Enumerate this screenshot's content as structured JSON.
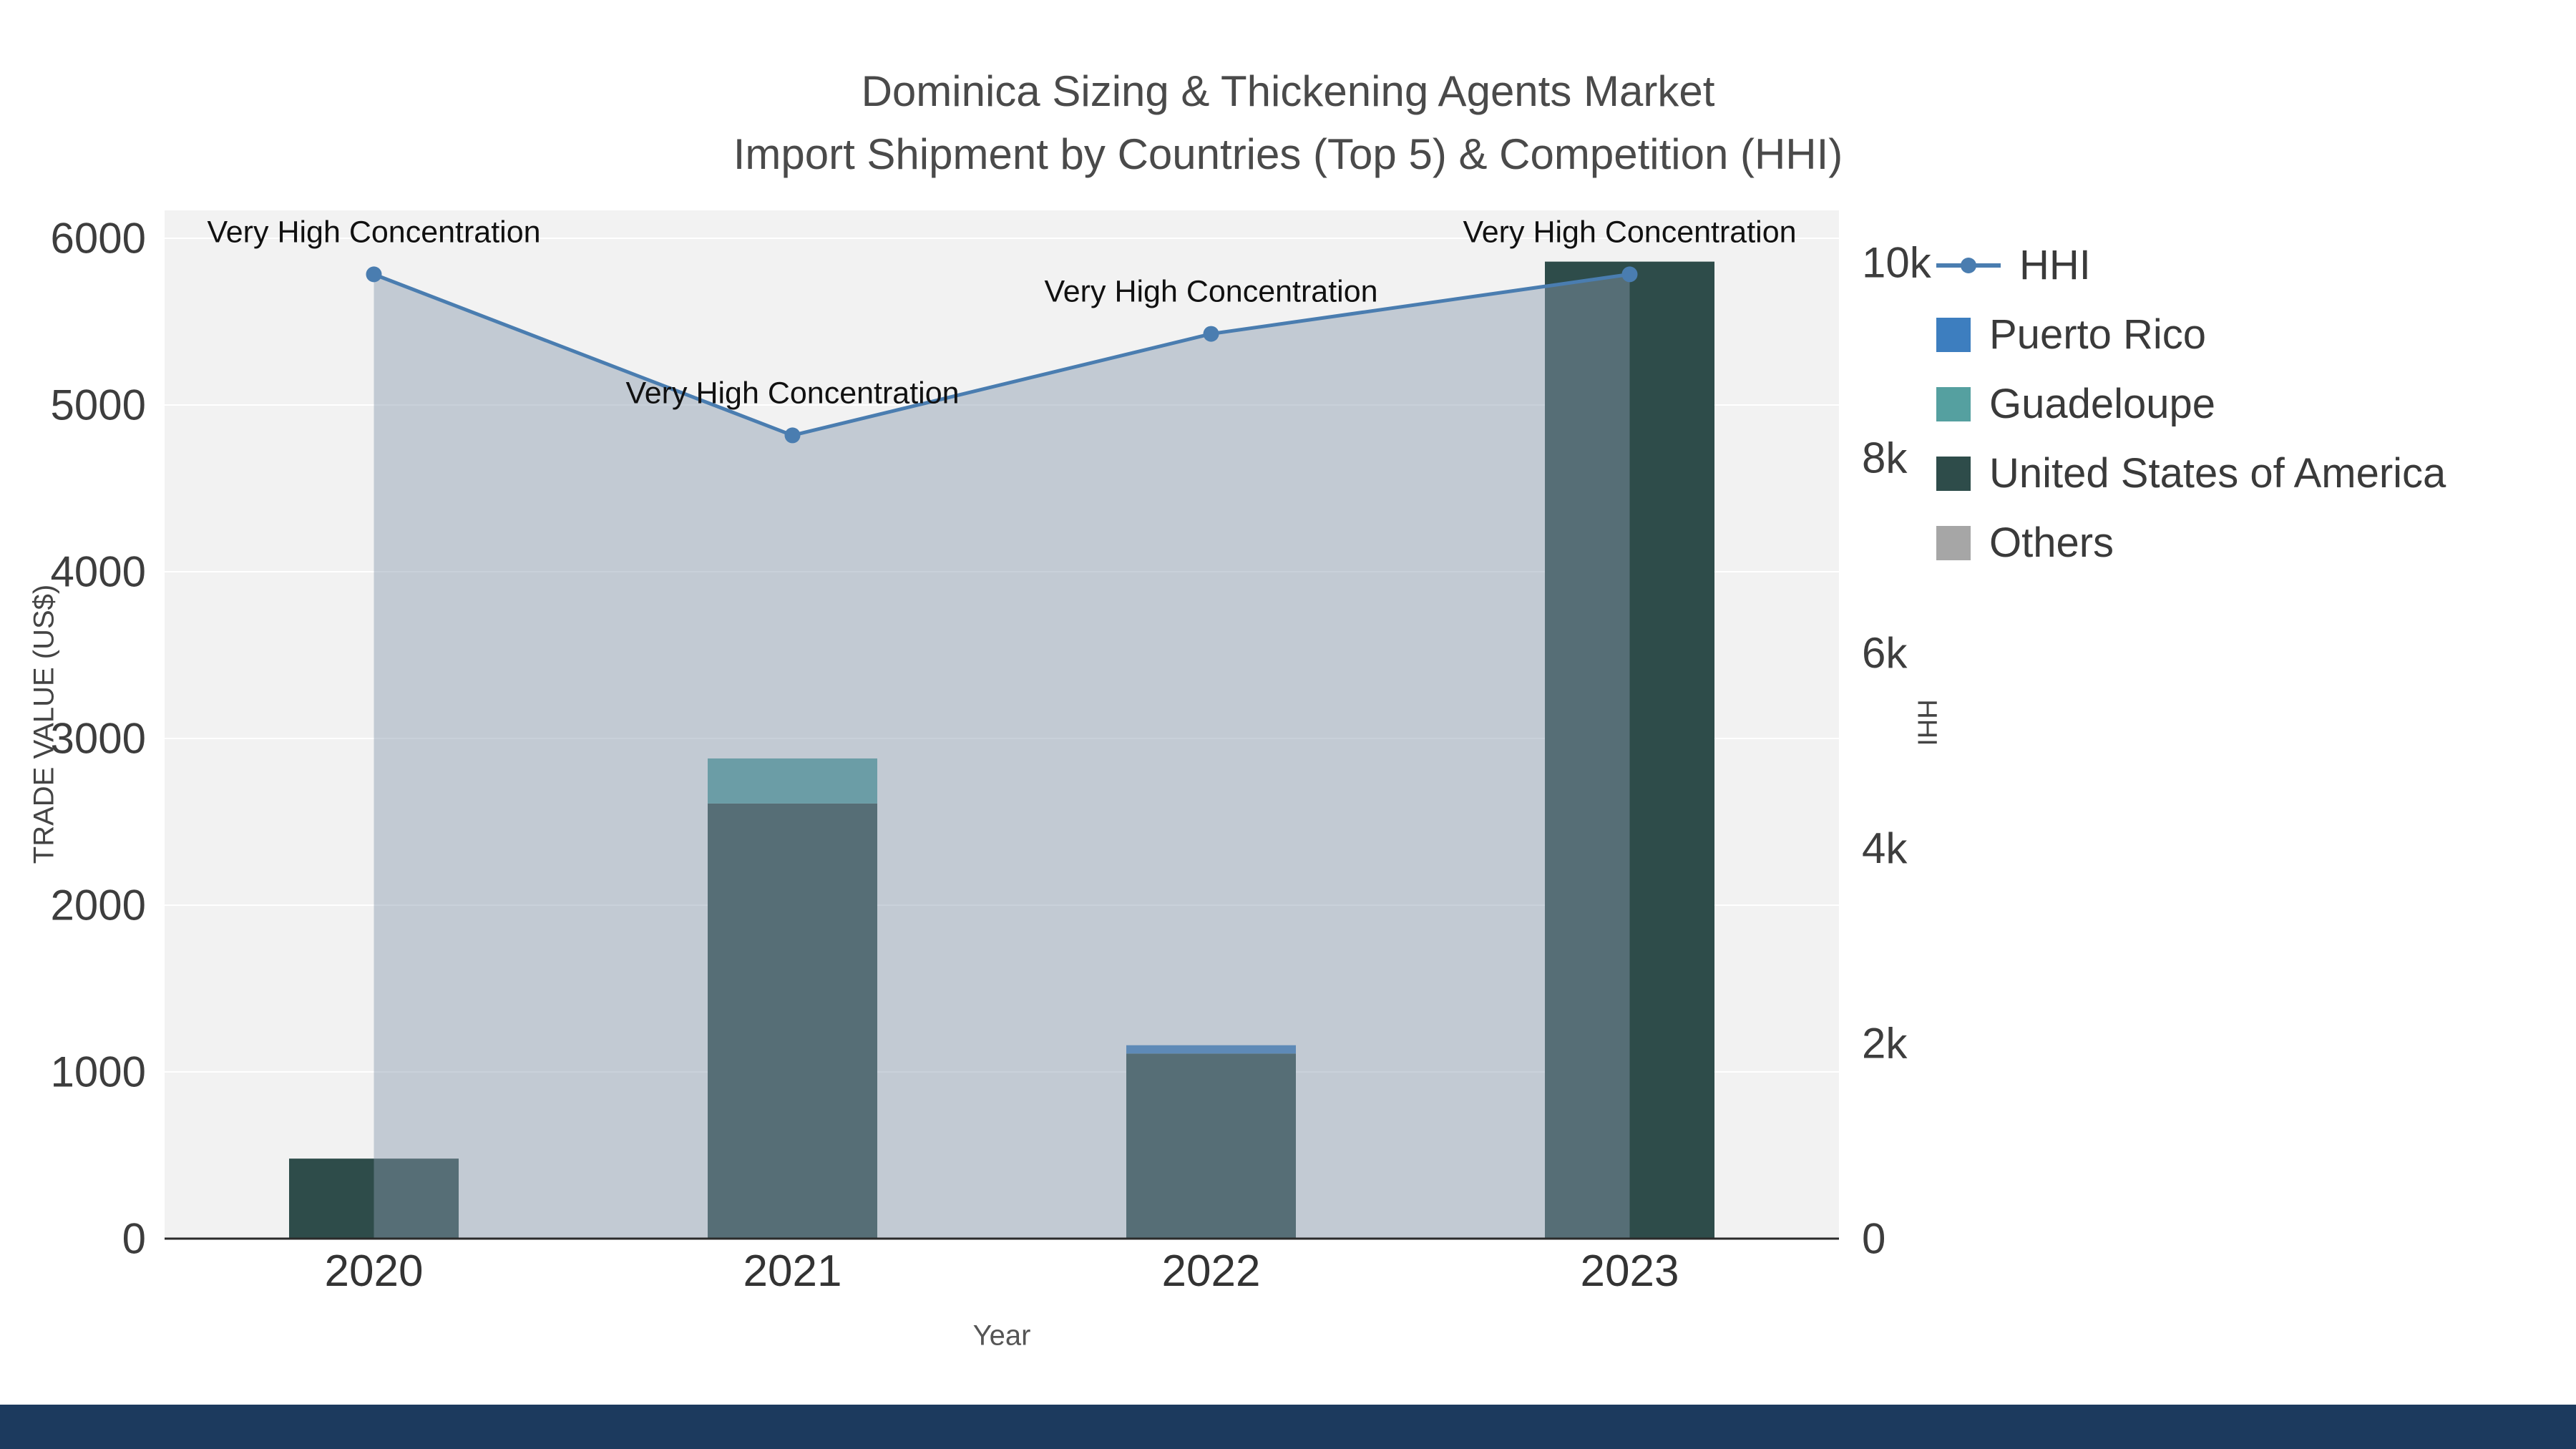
{
  "page": {
    "background": "#ffffff",
    "footer_bar_color": "#1c3a5e"
  },
  "title": {
    "line1": "Dominica Sizing & Thickening Agents Market",
    "line2": "Import Shipment by Countries (Top 5) & Competition (HHI)"
  },
  "chart_data": {
    "type": "bar+line",
    "title": "Dominica Sizing & Thickening Agents Market — Import Shipment by Countries (Top 5) & Competition (HHI)",
    "x": [
      "2020",
      "2021",
      "2022",
      "2023"
    ],
    "xlabel": "Year",
    "plot_bg": "#f2f2f2",
    "grid_color": "#ffffff",
    "axis_line_color": "#2a2a2a",
    "left_axis": {
      "label": "TRADE VALUE (US$)",
      "range": [
        0,
        6170
      ],
      "ticks": [
        {
          "value": 0,
          "label": "0"
        },
        {
          "value": 1000,
          "label": "1000"
        },
        {
          "value": 2000,
          "label": "2000"
        },
        {
          "value": 3000,
          "label": "3000"
        },
        {
          "value": 4000,
          "label": "4000"
        },
        {
          "value": 5000,
          "label": "5000"
        },
        {
          "value": 6000,
          "label": "6000"
        }
      ]
    },
    "right_axis": {
      "label": "HHI",
      "range": [
        0,
        10550
      ],
      "ticks": [
        {
          "value": 0,
          "label": "0"
        },
        {
          "value": 2000,
          "label": "2k"
        },
        {
          "value": 4000,
          "label": "4k"
        },
        {
          "value": 6000,
          "label": "6k"
        },
        {
          "value": 8000,
          "label": "8k"
        },
        {
          "value": 10000,
          "label": "10k"
        }
      ]
    },
    "bar_series": [
      {
        "name": "United States of America",
        "color": "#2e4c4a",
        "values": [
          480,
          2610,
          1110,
          5860
        ]
      },
      {
        "name": "Guadeloupe",
        "color": "#55a0a0",
        "values": [
          0,
          270,
          0,
          0
        ]
      },
      {
        "name": "Puerto Rico",
        "color": "#3d7ebf",
        "values": [
          0,
          0,
          50,
          0
        ]
      },
      {
        "name": "Others",
        "color": "#a6a6a6",
        "values": [
          0,
          0,
          0,
          0
        ]
      }
    ],
    "line_series": {
      "name": "HHI",
      "axis": "right",
      "color": "#4a7db0",
      "area_fill": "#8799ad",
      "area_opacity": 0.45,
      "values": [
        9880,
        8230,
        9270,
        9880
      ]
    },
    "annotations": [
      {
        "x": "2020",
        "text": "Very High Concentration"
      },
      {
        "x": "2021",
        "text": "Very High Concentration"
      },
      {
        "x": "2022",
        "text": "Very High Concentration"
      },
      {
        "x": "2023",
        "text": "Very High Concentration"
      }
    ],
    "legend_position": "right"
  },
  "legend": {
    "items": [
      {
        "label": "HHI",
        "type": "line",
        "color": "#4a7db0"
      },
      {
        "label": "Puerto Rico",
        "type": "square",
        "color": "#3d7ebf"
      },
      {
        "label": "Guadeloupe",
        "type": "square",
        "color": "#55a0a0"
      },
      {
        "label": "United States of America",
        "type": "square",
        "color": "#2e4c4a"
      },
      {
        "label": "Others",
        "type": "square",
        "color": "#a6a6a6"
      }
    ]
  }
}
